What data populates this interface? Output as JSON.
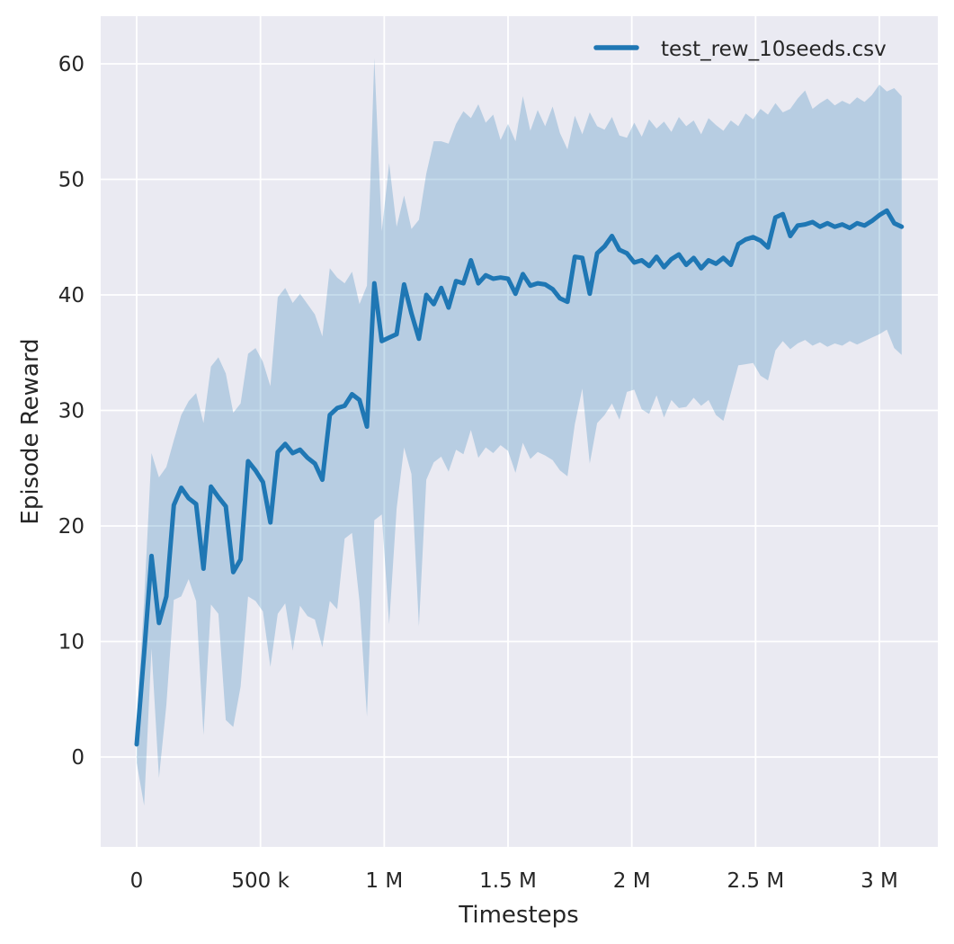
{
  "figure_title": "",
  "colors": {
    "background": "#ffffff",
    "plot_background": "#eaeaf2",
    "gridline": "#ffffff",
    "line": "#1f77b4",
    "band_fill": "#1f77b4",
    "text": "#262626"
  },
  "chart_data": {
    "type": "line",
    "title": "",
    "xlabel": "Timesteps",
    "ylabel": "Episode Reward",
    "legend_label": "test_rew_10seeds.csv",
    "legend_position": "upper right",
    "grid": true,
    "band_opacity": 0.25,
    "xlim": [
      -145000,
      3236000
    ],
    "ylim": [
      -7.8,
      64.1
    ],
    "xticks": [
      {
        "value": 0,
        "label": "0"
      },
      {
        "value": 500000,
        "label": "500 k"
      },
      {
        "value": 1000000,
        "label": "1 M"
      },
      {
        "value": 1500000,
        "label": "1.5 M"
      },
      {
        "value": 2000000,
        "label": "2 M"
      },
      {
        "value": 2500000,
        "label": "2.5 M"
      },
      {
        "value": 3000000,
        "label": "3 M"
      }
    ],
    "yticks": [
      {
        "value": 0,
        "label": "0"
      },
      {
        "value": 10,
        "label": "10"
      },
      {
        "value": 20,
        "label": "20"
      },
      {
        "value": 30,
        "label": "30"
      },
      {
        "value": 40,
        "label": "40"
      },
      {
        "value": 50,
        "label": "50"
      },
      {
        "value": 60,
        "label": "60"
      }
    ],
    "series": [
      {
        "name": "test_rew_10seeds.csv",
        "x": [
          0,
          30000,
          60000,
          90000,
          120000,
          150000,
          180000,
          210000,
          240000,
          270000,
          300000,
          330000,
          360000,
          390000,
          420000,
          450000,
          480000,
          510000,
          540000,
          570000,
          600000,
          630000,
          660000,
          690000,
          720000,
          750000,
          780000,
          810000,
          840000,
          870000,
          900000,
          930000,
          960000,
          990000,
          1020000,
          1050000,
          1080000,
          1110000,
          1140000,
          1170000,
          1200000,
          1230000,
          1260000,
          1290000,
          1320000,
          1350000,
          1380000,
          1410000,
          1440000,
          1470000,
          1500000,
          1530000,
          1560000,
          1590000,
          1620000,
          1650000,
          1680000,
          1710000,
          1740000,
          1770000,
          1800000,
          1830000,
          1860000,
          1890000,
          1920000,
          1950000,
          1980000,
          2010000,
          2040000,
          2070000,
          2100000,
          2130000,
          2160000,
          2190000,
          2220000,
          2250000,
          2280000,
          2310000,
          2340000,
          2370000,
          2400000,
          2430000,
          2460000,
          2490000,
          2520000,
          2550000,
          2580000,
          2610000,
          2640000,
          2670000,
          2700000,
          2730000,
          2760000,
          2790000,
          2820000,
          2850000,
          2880000,
          2910000,
          2940000,
          2970000,
          3000000,
          3030000,
          3060000,
          3090000
        ],
        "mean": [
          1.1,
          9.0,
          17.4,
          11.6,
          13.9,
          21.8,
          23.3,
          22.4,
          21.9,
          16.3,
          23.4,
          22.5,
          21.7,
          16.0,
          17.1,
          25.6,
          24.8,
          23.8,
          20.3,
          26.4,
          27.1,
          26.3,
          26.6,
          25.9,
          25.4,
          24.0,
          29.6,
          30.2,
          30.4,
          31.4,
          30.9,
          28.6,
          41.0,
          36.0,
          36.3,
          36.6,
          40.9,
          38.4,
          36.2,
          40.0,
          39.2,
          40.6,
          38.9,
          41.2,
          41.0,
          43.0,
          41.0,
          41.7,
          41.4,
          41.5,
          41.4,
          40.1,
          41.8,
          40.8,
          41.0,
          40.9,
          40.5,
          39.7,
          39.4,
          43.3,
          43.2,
          40.1,
          43.6,
          44.2,
          45.1,
          43.9,
          43.6,
          42.8,
          43.0,
          42.5,
          43.3,
          42.4,
          43.1,
          43.5,
          42.6,
          43.2,
          42.3,
          43.0,
          42.7,
          43.2,
          42.6,
          44.4,
          44.8,
          45.0,
          44.7,
          44.1,
          46.7,
          47.0,
          45.1,
          46.0,
          46.1,
          46.3,
          45.9,
          46.2,
          45.9,
          46.1,
          45.8,
          46.2,
          46.0,
          46.4,
          46.9,
          47.3,
          46.2,
          45.9
        ],
        "lower": [
          -0.5,
          -4.2,
          9.4,
          -1.8,
          4.5,
          13.6,
          13.9,
          15.4,
          13.5,
          1.9,
          13.2,
          12.4,
          3.2,
          2.6,
          6.1,
          13.9,
          13.5,
          12.6,
          7.8,
          12.4,
          13.3,
          9.2,
          13.1,
          12.2,
          11.9,
          9.5,
          13.5,
          12.8,
          18.9,
          19.4,
          13.5,
          3.5,
          20.5,
          21.0,
          11.5,
          21.5,
          26.8,
          24.5,
          11.3,
          24.0,
          25.5,
          26.0,
          24.7,
          26.6,
          26.2,
          28.3,
          25.9,
          26.8,
          26.3,
          27.0,
          26.5,
          24.6,
          27.2,
          25.8,
          26.4,
          26.1,
          25.7,
          24.8,
          24.3,
          28.8,
          31.9,
          25.4,
          28.9,
          29.6,
          30.6,
          29.2,
          31.6,
          31.8,
          30.1,
          29.7,
          31.3,
          29.4,
          30.9,
          30.2,
          30.3,
          31.1,
          30.4,
          30.9,
          29.6,
          29.1,
          31.5,
          33.9,
          34.0,
          34.1,
          33.0,
          32.6,
          35.2,
          36.0,
          35.3,
          35.8,
          36.1,
          35.6,
          35.9,
          35.5,
          35.8,
          35.6,
          36.0,
          35.7,
          36.0,
          36.3,
          36.6,
          37.0,
          35.4,
          34.8
        ],
        "upper": [
          2.8,
          13.5,
          26.3,
          24.2,
          25.1,
          27.4,
          29.6,
          30.8,
          31.5,
          28.9,
          33.8,
          34.6,
          33.2,
          29.8,
          30.6,
          34.9,
          35.4,
          34.2,
          32.1,
          39.8,
          40.6,
          39.3,
          40.1,
          39.2,
          38.3,
          36.4,
          42.3,
          41.5,
          41.0,
          42.0,
          39.2,
          40.8,
          60.5,
          45.5,
          51.4,
          45.9,
          48.6,
          45.7,
          46.5,
          50.5,
          53.3,
          53.3,
          53.1,
          54.8,
          55.9,
          55.3,
          56.5,
          54.9,
          55.6,
          53.4,
          54.8,
          53.3,
          57.2,
          54.2,
          56.0,
          54.6,
          56.3,
          54.0,
          52.6,
          55.5,
          53.9,
          55.8,
          54.6,
          54.3,
          55.4,
          53.8,
          53.6,
          54.9,
          53.7,
          55.2,
          54.4,
          55.0,
          54.1,
          55.4,
          54.6,
          55.1,
          53.9,
          55.3,
          54.7,
          54.2,
          55.1,
          54.6,
          55.7,
          55.2,
          56.1,
          55.6,
          56.6,
          55.8,
          56.1,
          57.0,
          57.7,
          56.1,
          56.6,
          57.0,
          56.4,
          56.8,
          56.5,
          57.1,
          56.7,
          57.3,
          58.2,
          57.6,
          57.9,
          57.2
        ]
      }
    ]
  }
}
